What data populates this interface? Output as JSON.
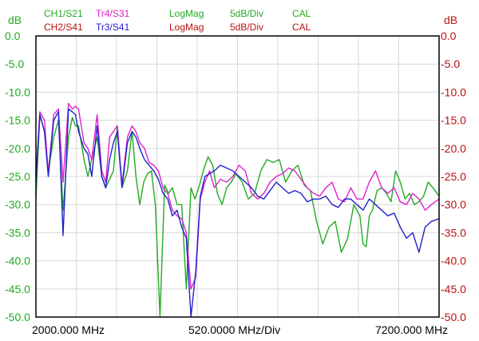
{
  "header": {
    "row1": [
      {
        "text": "CH1/S21",
        "color": "#22aa22"
      },
      {
        "text": "Tr4/S31",
        "color": "#dd22cc"
      },
      {
        "text": "LogMag",
        "color": "#22aa22"
      },
      {
        "text": "5dB/Div",
        "color": "#22aa22"
      },
      {
        "text": "CAL",
        "color": "#22aa22"
      }
    ],
    "row2": [
      {
        "text": "CH2/S41",
        "color": "#bb1111"
      },
      {
        "text": "Tr3/S41",
        "color": "#2222cc"
      },
      {
        "text": "LogMag",
        "color": "#bb1111"
      },
      {
        "text": "5dB/Div",
        "color": "#bb1111"
      },
      {
        "text": "CAL",
        "color": "#bb1111"
      }
    ]
  },
  "footer": {
    "start": "2000.000 MHz",
    "span": "520.0000 MHz/Div",
    "stop": "7200.000 MHz"
  },
  "colors": {
    "left_axis": "#22aa22",
    "right_axis": "#bb1111",
    "grid": "#d8d8d8",
    "frame": "#000000"
  },
  "chart_data": {
    "type": "line",
    "xlim": [
      2000,
      7200
    ],
    "ylim": [
      -50,
      0
    ],
    "grid": true,
    "y_left": {
      "unit": "dB",
      "ticks": [
        "0.0",
        "-5.0",
        "-10.0",
        "-15.0",
        "-20.0",
        "-25.0",
        "-30.0",
        "-35.0",
        "-40.0",
        "-45.0",
        "-50.0"
      ]
    },
    "y_right": {
      "unit": "dB",
      "ticks": [
        "0.0",
        "-5.0",
        "-10.0",
        "-15.0",
        "-20.0",
        "-25.0",
        "-30.0",
        "-35.0",
        "-40.0",
        "-45.0",
        "-50.0"
      ]
    },
    "series": [
      {
        "name": "CH1/S21",
        "color": "#22aa22",
        "x": [
          2000,
          2050,
          2110,
          2160,
          2230,
          2290,
          2350,
          2420,
          2470,
          2510,
          2550,
          2620,
          2670,
          2720,
          2790,
          2850,
          2900,
          3000,
          3050,
          3110,
          3180,
          3240,
          3290,
          3340,
          3390,
          3440,
          3490,
          3540,
          3600,
          3660,
          3710,
          3760,
          3820,
          3880,
          3940,
          4000,
          4050,
          4110,
          4170,
          4220,
          4280,
          4340,
          4400,
          4460,
          4520,
          4580,
          4660,
          4740,
          4820,
          4900,
          4980,
          5060,
          5140,
          5220,
          5300,
          5380,
          5460,
          5540,
          5620,
          5700,
          5780,
          5860,
          5940,
          6020,
          6100,
          6180,
          6220,
          6260,
          6300,
          6340,
          6400,
          6460,
          6520,
          6580,
          6640,
          6700,
          6760,
          6820,
          6880,
          6940,
          7000,
          7060,
          7120,
          7200
        ],
        "y": [
          -29,
          -14,
          -17,
          -24,
          -18,
          -15,
          -31,
          -18,
          -14.5,
          -16,
          -16,
          -22,
          -25,
          -22,
          -18,
          -25,
          -27,
          -24,
          -16,
          -27,
          -24,
          -17,
          -25,
          -30,
          -26,
          -24.5,
          -24,
          -30,
          -50,
          -26.5,
          -28,
          -27,
          -30,
          -30,
          -45,
          -27,
          -29,
          -26.5,
          -23.5,
          -21.5,
          -23,
          -28,
          -30,
          -27,
          -26,
          -24.5,
          -26,
          -29,
          -28,
          -24,
          -22,
          -22.5,
          -22,
          -26,
          -24,
          -23,
          -26.5,
          -27.5,
          -33,
          -37,
          -34,
          -33,
          -38.5,
          -36,
          -30,
          -32,
          -37,
          -37.5,
          -32,
          -31,
          -27.5,
          -27,
          -28,
          -29.5,
          -24,
          -26,
          -29,
          -28,
          -30,
          -29.5,
          -28.5,
          -26,
          -27,
          -28.5
        ]
      },
      {
        "name": "Tr4/S31",
        "color": "#dd22cc",
        "x": [
          2000,
          2050,
          2110,
          2160,
          2230,
          2290,
          2350,
          2420,
          2470,
          2510,
          2550,
          2620,
          2670,
          2720,
          2790,
          2850,
          2900,
          2950,
          3000,
          3050,
          3110,
          3180,
          3240,
          3290,
          3340,
          3400,
          3460,
          3520,
          3580,
          3640,
          3700,
          3760,
          3820,
          3880,
          3940,
          4000,
          4060,
          4120,
          4180,
          4240,
          4300,
          4380,
          4460,
          4540,
          4620,
          4700,
          4780,
          4860,
          4940,
          5020,
          5100,
          5180,
          5260,
          5340,
          5420,
          5500,
          5580,
          5660,
          5740,
          5820,
          5900,
          5980,
          6060,
          6140,
          6220,
          6300,
          6380,
          6460,
          6540,
          6620,
          6700,
          6780,
          6860,
          6940,
          7020,
          7100,
          7200
        ],
        "y": [
          -25,
          -13.5,
          -15,
          -24.5,
          -14,
          -13,
          -26,
          -12,
          -13,
          -12.5,
          -13,
          -19,
          -20,
          -22,
          -14,
          -24,
          -26,
          -18,
          -17,
          -16,
          -26.5,
          -18,
          -16,
          -17,
          -19,
          -20,
          -22.5,
          -23,
          -24,
          -27,
          -28,
          -31,
          -32,
          -32.5,
          -35,
          -45,
          -43,
          -29,
          -26,
          -24,
          -27,
          -25.5,
          -26,
          -25,
          -23,
          -24,
          -28,
          -29,
          -28,
          -26,
          -25,
          -24.5,
          -23.5,
          -24,
          -25.5,
          -27,
          -28,
          -28.5,
          -27,
          -26,
          -29,
          -29.5,
          -27,
          -29,
          -29,
          -26,
          -24,
          -27,
          -28,
          -27,
          -29.5,
          -30,
          -28,
          -29,
          -31,
          -30,
          -29
        ]
      },
      {
        "name": "Tr3/S41",
        "color": "#2222cc",
        "x": [
          2000,
          2050,
          2110,
          2160,
          2230,
          2290,
          2350,
          2420,
          2470,
          2510,
          2550,
          2620,
          2670,
          2720,
          2790,
          2850,
          2900,
          2950,
          3000,
          3050,
          3110,
          3180,
          3240,
          3290,
          3340,
          3400,
          3460,
          3520,
          3580,
          3640,
          3700,
          3760,
          3820,
          3880,
          3940,
          4000,
          4060,
          4120,
          4180,
          4240,
          4300,
          4380,
          4460,
          4540,
          4620,
          4700,
          4780,
          4860,
          4940,
          5020,
          5100,
          5180,
          5260,
          5340,
          5420,
          5500,
          5580,
          5660,
          5740,
          5820,
          5900,
          5980,
          6060,
          6140,
          6220,
          6300,
          6380,
          6460,
          6540,
          6620,
          6700,
          6780,
          6860,
          6940,
          7020,
          7100,
          7200
        ],
        "y": [
          -26,
          -14,
          -17,
          -25,
          -15,
          -13.5,
          -35.5,
          -13,
          -13.5,
          -14,
          -17,
          -20,
          -21,
          -25,
          -16,
          -25,
          -27,
          -22,
          -19,
          -17,
          -27,
          -19,
          -17,
          -18,
          -20,
          -22,
          -23,
          -24,
          -25.5,
          -28,
          -29,
          -32,
          -31,
          -34,
          -36,
          -50,
          -42,
          -28.5,
          -25,
          -24.5,
          -24,
          -23,
          -23.5,
          -24,
          -25,
          -26,
          -27,
          -28.5,
          -29,
          -27.5,
          -26,
          -27,
          -28,
          -27.5,
          -28,
          -29.5,
          -29,
          -29,
          -28.5,
          -30,
          -30.5,
          -29,
          -29,
          -30,
          -31,
          -29,
          -30,
          -31,
          -32,
          -31.5,
          -34,
          -36,
          -35,
          -38.5,
          -34,
          -33,
          -32.5
        ]
      }
    ]
  }
}
